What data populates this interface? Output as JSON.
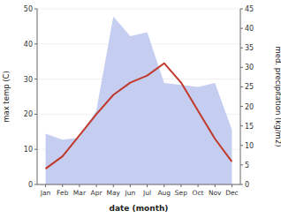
{
  "chart_data": {
    "type": "line",
    "x_label": "date (month)",
    "y_label": "max temp (C)",
    "y2_label": "med. precipitation (kg/m2)",
    "categories": [
      "Jan",
      "Feb",
      "Mar",
      "Apr",
      "May",
      "Jun",
      "Jul",
      "Aug",
      "Sep",
      "Oct",
      "Nov",
      "Dec"
    ],
    "series": [
      {
        "type": "area",
        "axis": "y2",
        "color": "#c5cdf0",
        "values": [
          13.0,
          11.5,
          12.0,
          19.0,
          43.0,
          38.0,
          39.0,
          26.0,
          25.5,
          25.0,
          26.0,
          14.0
        ]
      },
      {
        "type": "line",
        "color": "#c0392b",
        "values": [
          4.5,
          8.0,
          14.0,
          20.0,
          25.5,
          29.0,
          31.0,
          34.5,
          29.0,
          21.0,
          13.0,
          6.5
        ]
      }
    ],
    "ylim": [
      0,
      50
    ],
    "yticks": [
      0,
      10,
      20,
      30,
      40,
      50
    ],
    "y2lim": [
      0,
      45
    ],
    "y2ticks": [
      0,
      5,
      10,
      15,
      20,
      25,
      30,
      35,
      40,
      45
    ],
    "grid": true
  }
}
